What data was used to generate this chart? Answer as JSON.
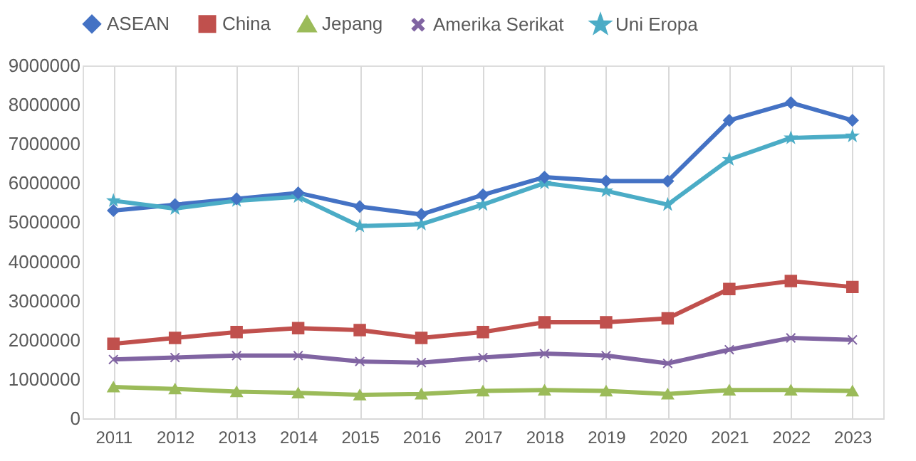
{
  "chart_data": {
    "type": "line",
    "categories": [
      "2011",
      "2012",
      "2013",
      "2014",
      "2015",
      "2016",
      "2017",
      "2018",
      "2019",
      "2020",
      "2021",
      "2022",
      "2023"
    ],
    "series": [
      {
        "name": "ASEAN",
        "color": "#4472c4",
        "marker": "diamond",
        "values": [
          5300000,
          5450000,
          5600000,
          5750000,
          5400000,
          5200000,
          5700000,
          6150000,
          6050000,
          6050000,
          7600000,
          8050000,
          7600000
        ]
      },
      {
        "name": "China",
        "color": "#c0504d",
        "marker": "square",
        "values": [
          1900000,
          2050000,
          2200000,
          2300000,
          2250000,
          2050000,
          2200000,
          2450000,
          2450000,
          2550000,
          3300000,
          3500000,
          3350000
        ]
      },
      {
        "name": "Jepang",
        "color": "#9bbb59",
        "marker": "triangle",
        "values": [
          800000,
          750000,
          680000,
          650000,
          600000,
          620000,
          700000,
          720000,
          700000,
          620000,
          720000,
          720000,
          700000
        ]
      },
      {
        "name": "Amerika Serikat",
        "color": "#8064a2",
        "marker": "cross",
        "values": [
          1500000,
          1550000,
          1600000,
          1600000,
          1450000,
          1420000,
          1550000,
          1650000,
          1600000,
          1400000,
          1750000,
          2050000,
          2000000
        ]
      },
      {
        "name": "Uni Eropa",
        "color": "#4bacc6",
        "marker": "star",
        "values": [
          5550000,
          5350000,
          5550000,
          5650000,
          4900000,
          4950000,
          5450000,
          6000000,
          5800000,
          5450000,
          6600000,
          7150000,
          7200000
        ]
      }
    ],
    "ylim": [
      0,
      9000000
    ],
    "yticks": [
      0,
      1000000,
      2000000,
      3000000,
      4000000,
      5000000,
      6000000,
      7000000,
      8000000,
      9000000
    ],
    "grid": "x",
    "legend": "top",
    "line_style": "solid"
  }
}
